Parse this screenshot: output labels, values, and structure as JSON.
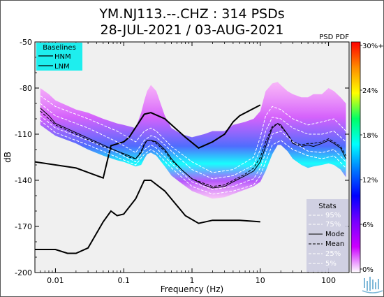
{
  "header": {
    "title_line1": "YM.NJ113.--.CHZ : 314 PSDs",
    "title_line2": "28-JUL-2021 / 03-AUG-2021"
  },
  "colorbar": {
    "title": "PSD PDF",
    "tick_labels": [
      "30%+",
      "24%",
      "18%",
      "12%",
      "6%",
      "0%"
    ],
    "stops": [
      "#ff0000",
      "#ff8c00",
      "#ffff00",
      "#00ff66",
      "#00ffff",
      "#0077ff",
      "#0000ff",
      "#7700ff",
      "#cc00ff",
      "#ffffff"
    ]
  },
  "baselines_legend": {
    "title": "Baselines",
    "items": [
      "HNM",
      "LNM"
    ],
    "bg_color": "#1eeeee"
  },
  "stats_legend": {
    "title": "Stats",
    "items": [
      {
        "label": "95%",
        "style": "dashed",
        "color": "#ffffff"
      },
      {
        "label": "75%",
        "style": "dashed",
        "color": "#ffffff"
      },
      {
        "label": "Mode",
        "style": "solid",
        "color": "#000000"
      },
      {
        "label": "Mean",
        "style": "dashed",
        "color": "#000000"
      },
      {
        "label": "25%",
        "style": "dashed",
        "color": "#ffffff"
      },
      {
        "label": "5%",
        "style": "dashed",
        "color": "#ffffff"
      }
    ],
    "bg_color": "#cccce0"
  },
  "chart_data": {
    "type": "line",
    "xlabel": "Frequency (Hz)",
    "ylabel": "dB",
    "x_scale": "log",
    "xlim": [
      0.005,
      200
    ],
    "ylim": [
      -200,
      -50
    ],
    "x_ticks": [
      0.01,
      0.1,
      1,
      10,
      100
    ],
    "x_tick_labels": [
      "0.01",
      "0.1",
      "1",
      "10",
      "100"
    ],
    "y_ticks": [
      -50,
      -80,
      -110,
      -140,
      -170,
      -200
    ],
    "y_tick_labels": [
      "-50",
      "-80",
      "-110",
      "-140",
      "-170",
      "-200"
    ],
    "grid": false,
    "plot_bg": "#f0f0f0",
    "series": [
      {
        "name": "HNM",
        "color": "#000000",
        "style": "solid",
        "x": [
          0.005,
          0.02,
          0.05,
          0.065,
          0.1,
          0.12,
          0.2,
          0.25,
          0.4,
          0.8,
          1.25,
          2,
          3,
          4,
          5,
          10
        ],
        "y": [
          -128,
          -132,
          -138.5,
          -117.5,
          -115,
          -112,
          -97,
          -96,
          -100,
          -112,
          -119,
          -115,
          -110,
          -102,
          -98,
          -91
        ]
      },
      {
        "name": "LNM",
        "color": "#000000",
        "style": "solid",
        "x": [
          0.005,
          0.01,
          0.015,
          0.02,
          0.03,
          0.05,
          0.065,
          0.08,
          0.1,
          0.15,
          0.2,
          0.25,
          0.4,
          0.8,
          1.25,
          2,
          5,
          10
        ],
        "y": [
          -185,
          -185,
          -187.5,
          -187.5,
          -184,
          -167,
          -160,
          -163,
          -162,
          -152,
          -140,
          -140,
          -147,
          -163,
          -168,
          -166,
          -166,
          -167
        ]
      },
      {
        "name": "Mode",
        "color": "#000000",
        "style": "solid",
        "x": [
          0.006,
          0.008,
          0.01,
          0.02,
          0.05,
          0.08,
          0.12,
          0.15,
          0.18,
          0.2,
          0.22,
          0.25,
          0.3,
          0.4,
          0.5,
          0.7,
          1,
          1.5,
          2,
          3,
          4,
          6,
          8,
          10,
          12,
          15,
          18,
          20,
          25,
          30,
          40,
          50,
          60,
          80,
          100,
          120,
          150,
          180
        ],
        "y": [
          -93,
          -98,
          -103,
          -109,
          -117,
          -121,
          -124,
          -126,
          -122,
          -117,
          -114,
          -114,
          -115,
          -120,
          -126,
          -133,
          -139,
          -143,
          -145,
          -144,
          -141,
          -137,
          -134,
          -128,
          -118,
          -106,
          -103,
          -104,
          -110,
          -116,
          -118,
          -117,
          -118,
          -116,
          -114,
          -116,
          -119,
          -126
        ]
      },
      {
        "name": "Mean",
        "color": "#000000",
        "style": "dashed",
        "x": [
          0.006,
          0.008,
          0.01,
          0.02,
          0.05,
          0.08,
          0.12,
          0.15,
          0.18,
          0.2,
          0.22,
          0.25,
          0.3,
          0.4,
          0.5,
          0.7,
          1,
          1.5,
          2,
          3,
          4,
          6,
          8,
          10,
          12,
          15,
          18,
          20,
          25,
          30,
          40,
          50,
          60,
          80,
          100,
          120,
          150,
          180
        ],
        "y": [
          -95,
          -100,
          -104,
          -110,
          -118,
          -121,
          -125,
          -126,
          -121,
          -116,
          -114,
          -114,
          -116,
          -121,
          -127,
          -133,
          -139,
          -142,
          -144,
          -143,
          -140,
          -136,
          -132,
          -125,
          -115,
          -105,
          -103,
          -105,
          -110,
          -115,
          -117,
          -116,
          -116,
          -115,
          -113,
          -115,
          -118,
          -124
        ]
      },
      {
        "name": "95%",
        "color": "#ffffff",
        "style": "dashed",
        "x": [
          0.006,
          0.01,
          0.03,
          0.08,
          0.15,
          0.2,
          0.25,
          0.3,
          0.5,
          1,
          2,
          4,
          8,
          10,
          12,
          15,
          20,
          30,
          50,
          80,
          120,
          180
        ],
        "y": [
          -85,
          -92,
          -100,
          -108,
          -115,
          -108,
          -106,
          -108,
          -118,
          -128,
          -135,
          -133,
          -125,
          -112,
          -98,
          -92,
          -94,
          -100,
          -104,
          -102,
          -100,
          -108
        ]
      },
      {
        "name": "75%",
        "color": "#ffffff",
        "style": "dashed",
        "x": [
          0.006,
          0.01,
          0.03,
          0.08,
          0.15,
          0.2,
          0.25,
          0.3,
          0.5,
          1,
          2,
          4,
          8,
          10,
          12,
          15,
          20,
          30,
          50,
          80,
          120,
          180
        ],
        "y": [
          -90,
          -98,
          -106,
          -115,
          -122,
          -114,
          -111,
          -112,
          -121,
          -133,
          -139,
          -137,
          -130,
          -120,
          -108,
          -99,
          -100,
          -106,
          -110,
          -110,
          -108,
          -115
        ]
      },
      {
        "name": "25%",
        "color": "#ffffff",
        "style": "dashed",
        "x": [
          0.006,
          0.01,
          0.03,
          0.08,
          0.15,
          0.2,
          0.25,
          0.3,
          0.5,
          1,
          2,
          4,
          8,
          10,
          12,
          15,
          20,
          30,
          50,
          80,
          120,
          180
        ],
        "y": [
          -98,
          -106,
          -114,
          -122,
          -128,
          -120,
          -117,
          -119,
          -129,
          -141,
          -146,
          -144,
          -139,
          -132,
          -122,
          -110,
          -108,
          -115,
          -121,
          -122,
          -120,
          -128
        ]
      },
      {
        "name": "5%",
        "color": "#ffffff",
        "style": "dashed",
        "x": [
          0.006,
          0.01,
          0.03,
          0.08,
          0.15,
          0.2,
          0.25,
          0.3,
          0.5,
          1,
          2,
          4,
          8,
          10,
          12,
          15,
          20,
          30,
          50,
          80,
          120,
          180
        ],
        "y": [
          -101,
          -109,
          -117,
          -125,
          -130,
          -123,
          -120,
          -122,
          -132,
          -144,
          -149,
          -147,
          -143,
          -137,
          -128,
          -117,
          -114,
          -120,
          -124,
          -126,
          -124,
          -132
        ]
      }
    ],
    "density_cloud": {
      "upper": {
        "x": [
          0.006,
          0.008,
          0.01,
          0.02,
          0.03,
          0.05,
          0.08,
          0.1,
          0.15,
          0.18,
          0.2,
          0.22,
          0.25,
          0.3,
          0.4,
          0.5,
          0.7,
          1,
          1.5,
          2,
          3,
          4,
          6,
          8,
          10,
          12,
          15,
          18,
          20,
          25,
          30,
          40,
          50,
          60,
          80,
          100,
          120,
          150,
          180
        ],
        "y": [
          -80,
          -84,
          -88,
          -94,
          -96,
          -100,
          -103,
          -104,
          -106,
          -96,
          -88,
          -82,
          -78,
          -82,
          -98,
          -106,
          -110,
          -112,
          -110,
          -108,
          -108,
          -104,
          -102,
          -100,
          -95,
          -82,
          -77,
          -76,
          -78,
          -82,
          -84,
          -86,
          -86,
          -84,
          -84,
          -80,
          -82,
          -86,
          -90
        ]
      },
      "lower": {
        "x": [
          0.006,
          0.008,
          0.01,
          0.02,
          0.03,
          0.05,
          0.08,
          0.1,
          0.15,
          0.18,
          0.2,
          0.22,
          0.25,
          0.3,
          0.4,
          0.5,
          0.7,
          1,
          1.5,
          2,
          3,
          4,
          6,
          8,
          10,
          12,
          15,
          18,
          20,
          25,
          30,
          40,
          50,
          60,
          80,
          100,
          120,
          150,
          180
        ],
        "y": [
          -104,
          -108,
          -111,
          -116,
          -120,
          -124,
          -127,
          -128,
          -131,
          -130,
          -126,
          -123,
          -122,
          -124,
          -131,
          -137,
          -142,
          -147,
          -150,
          -152,
          -151,
          -149,
          -146,
          -144,
          -141,
          -134,
          -123,
          -117,
          -117,
          -121,
          -126,
          -130,
          -132,
          -131,
          -130,
          -129,
          -130,
          -133,
          -138
        ]
      }
    }
  }
}
